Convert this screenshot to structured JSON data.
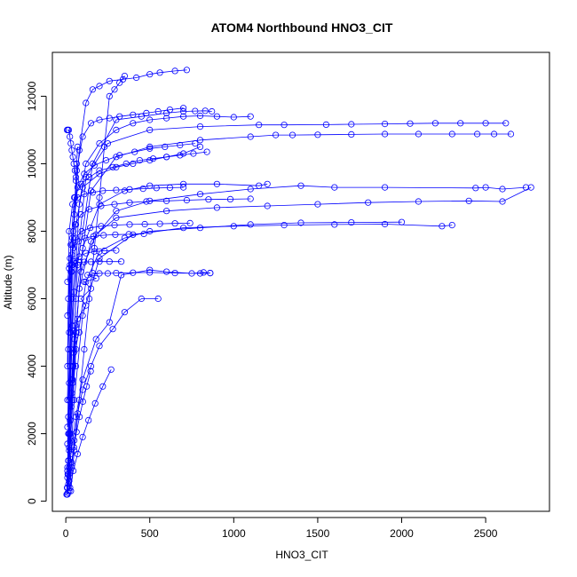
{
  "chart_data": {
    "type": "scatter",
    "title": "ATOM4 Northbound HNO3_CIT",
    "xlabel": "HNO3_CIT",
    "ylabel": "Altitude (m)",
    "xlim": [
      -80,
      2880
    ],
    "ylim": [
      -300,
      13300
    ],
    "xticks": [
      0,
      500,
      1000,
      1500,
      2000,
      2500
    ],
    "yticks": [
      0,
      2000,
      4000,
      6000,
      8000,
      10000,
      12000
    ],
    "grid": false,
    "legend": "none",
    "series_color": "#0000ff",
    "marker": "open-circle",
    "connected": true,
    "series": [
      {
        "x": [
          10,
          20,
          15,
          30,
          25,
          40,
          35,
          60,
          50,
          80,
          70,
          120,
          90,
          150,
          110,
          180,
          130,
          200,
          160,
          250,
          300,
          400,
          500,
          650,
          800,
          860
        ],
        "y": [
          200,
          600,
          1200,
          1800,
          2400,
          3000,
          3600,
          4000,
          4500,
          5000,
          5400,
          5800,
          6000,
          6300,
          6500,
          6600,
          6700,
          6750,
          6760,
          6750,
          6760,
          6770,
          6780,
          6760,
          6750,
          6760
        ]
      },
      {
        "x": [
          20,
          35,
          50,
          70,
          100,
          150,
          200,
          280,
          350,
          450,
          550
        ],
        "y": [
          300,
          1000,
          1800,
          2600,
          3300,
          4000,
          4600,
          5100,
          5600,
          6000,
          6000
        ]
      },
      {
        "x": [
          15,
          30,
          60,
          100,
          180,
          260,
          330,
          500,
          600,
          750,
          820,
          860
        ],
        "y": [
          500,
          1400,
          2500,
          3600,
          4800,
          5300,
          6700,
          6850,
          6800,
          6750,
          6780,
          6760
        ]
      },
      {
        "x": [
          10,
          30,
          60,
          120,
          200,
          350,
          500,
          800,
          1100,
          1400,
          1700,
          2000
        ],
        "y": [
          400,
          2000,
          4500,
          6500,
          7400,
          7800,
          8000,
          8100,
          8200,
          8250,
          8260,
          8270
        ]
      },
      {
        "x": [
          20,
          50,
          100,
          200,
          400,
          700,
          1000,
          1300,
          1600,
          1900,
          2240,
          2300
        ],
        "y": [
          600,
          3000,
          5500,
          7200,
          7900,
          8100,
          8150,
          8180,
          8200,
          8210,
          8150,
          8180
        ]
      },
      {
        "x": [
          15,
          40,
          90,
          180,
          300,
          600,
          900,
          1200,
          1500,
          1800,
          2100,
          2400,
          2600,
          2770
        ],
        "y": [
          800,
          4000,
          6800,
          7900,
          8400,
          8600,
          8700,
          8750,
          8800,
          8850,
          8880,
          8900,
          8880,
          9300
        ]
      },
      {
        "x": [
          10,
          40,
          80,
          150,
          300,
          500,
          800,
          1100,
          1400,
          1600,
          1900,
          2440,
          2500,
          2600,
          2740
        ],
        "y": [
          700,
          3500,
          6300,
          7700,
          8600,
          8900,
          9100,
          9250,
          9350,
          9300,
          9300,
          9280,
          9300,
          9250,
          9300
        ]
      },
      {
        "x": [
          20,
          60,
          100,
          200,
          350,
          500,
          700,
          900,
          1150,
          1200
        ],
        "y": [
          1000,
          5000,
          7500,
          8800,
          9200,
          9350,
          9400,
          9400,
          9350,
          9400
        ]
      },
      {
        "x": [
          10,
          30,
          60,
          100,
          200,
          300,
          400,
          500,
          600,
          700,
          800
        ],
        "y": [
          900,
          4500,
          8200,
          9300,
          9700,
          9900,
          10000,
          10100,
          10200,
          10300,
          10500
        ]
      },
      {
        "x": [
          15,
          40,
          80,
          120,
          200,
          300,
          400,
          500,
          600,
          700,
          800,
          900,
          1000,
          1100
        ],
        "y": [
          1200,
          5200,
          8800,
          10000,
          10600,
          11000,
          11200,
          11300,
          11350,
          11400,
          11420,
          11400,
          11380,
          11400
        ]
      },
      {
        "x": [
          20,
          60,
          150,
          300,
          500,
          800,
          1100,
          1250,
          1350,
          1500,
          1700,
          1900,
          2100,
          2300,
          2450,
          2550,
          2650
        ],
        "y": [
          1500,
          6000,
          9200,
          10200,
          10500,
          10700,
          10800,
          10850,
          10850,
          10860,
          10870,
          10880,
          10880,
          10880,
          10880,
          10880,
          10880
        ]
      },
      {
        "x": [
          10,
          50,
          120,
          250,
          500,
          800,
          1150,
          1300,
          1550,
          1700,
          1900,
          2050,
          2200,
          2350,
          2500,
          2620
        ],
        "y": [
          1700,
          6200,
          9600,
          10600,
          11000,
          11100,
          11150,
          11150,
          11160,
          11170,
          11180,
          11190,
          11200,
          11200,
          11200,
          11200
        ]
      },
      {
        "x": [
          20,
          70,
          160,
          300,
          450,
          600,
          700,
          770,
          830,
          870
        ],
        "y": [
          2000,
          7000,
          10000,
          11300,
          11400,
          11500,
          11550,
          11560,
          11570,
          11550
        ]
      },
      {
        "x": [
          10,
          40,
          80,
          120,
          160,
          200,
          260,
          340,
          420,
          500,
          560,
          650,
          720
        ],
        "y": [
          2200,
          7600,
          10400,
          11800,
          12200,
          12300,
          12450,
          12500,
          12550,
          12650,
          12700,
          12750,
          12780
        ]
      },
      {
        "x": [
          15,
          35,
          65,
          100,
          150,
          200,
          260,
          320,
          400,
          480,
          550,
          620,
          700
        ],
        "y": [
          2500,
          6800,
          9800,
          10800,
          11200,
          11300,
          11350,
          11400,
          11450,
          11500,
          11550,
          11600,
          11650
        ]
      },
      {
        "x": [
          10,
          25,
          50,
          90,
          140,
          200,
          280,
          360,
          440,
          520,
          600,
          680,
          760,
          840
        ],
        "y": [
          3000,
          7200,
          9000,
          9400,
          9600,
          9800,
          9900,
          10000,
          10100,
          10150,
          10200,
          10250,
          10300,
          10350
        ]
      },
      {
        "x": [
          20,
          40,
          70,
          110,
          170,
          240,
          320,
          410,
          500,
          590,
          680,
          770
        ],
        "y": [
          3500,
          7800,
          9300,
          9700,
          9950,
          10100,
          10250,
          10350,
          10450,
          10500,
          10550,
          10600
        ]
      },
      {
        "x": [
          10,
          20,
          40,
          70,
          110,
          160,
          220,
          300,
          380,
          460,
          540,
          620,
          700
        ],
        "y": [
          4000,
          8000,
          8800,
          9000,
          9100,
          9150,
          9200,
          9220,
          9240,
          9260,
          9280,
          9290,
          9300
        ]
      },
      {
        "x": [
          15,
          30,
          55,
          90,
          140,
          210,
          290,
          380,
          480,
          600,
          720,
          850,
          980,
          1100
        ],
        "y": [
          4500,
          7600,
          8200,
          8500,
          8650,
          8750,
          8800,
          8850,
          8880,
          8900,
          8920,
          8940,
          8950,
          8960
        ]
      },
      {
        "x": [
          20,
          35,
          60,
          95,
          145,
          210,
          290,
          380,
          470,
          560,
          650,
          740
        ],
        "y": [
          5000,
          7300,
          7800,
          8000,
          8100,
          8150,
          8180,
          8200,
          8210,
          8220,
          8230,
          8240
        ]
      },
      {
        "x": [
          10,
          25,
          45,
          75,
          115,
          165,
          225,
          295,
          375,
          465
        ],
        "y": [
          5500,
          7000,
          7500,
          7700,
          7800,
          7850,
          7880,
          7900,
          7910,
          7920
        ]
      },
      {
        "x": [
          15,
          30,
          50,
          80,
          120,
          170,
          230,
          300
        ],
        "y": [
          6000,
          6800,
          7100,
          7250,
          7350,
          7400,
          7420,
          7430
        ]
      },
      {
        "x": [
          10,
          20,
          35,
          55,
          80,
          110,
          150,
          200,
          260,
          330
        ],
        "y": [
          6500,
          6900,
          7000,
          7050,
          7080,
          7090,
          7095,
          7100,
          7100,
          7100
        ]
      },
      {
        "x": [
          5,
          10,
          15,
          20,
          25,
          30,
          35,
          40,
          45,
          50,
          55,
          60,
          65,
          70
        ],
        "y": [
          200,
          1000,
          2000,
          3000,
          4000,
          5000,
          6000,
          7000,
          8000,
          8500,
          9000,
          9500,
          10000,
          10500
        ]
      },
      {
        "x": [
          8,
          12,
          18,
          24,
          30,
          36,
          42,
          48,
          54,
          60
        ],
        "y": [
          11000,
          11000,
          11000,
          10800,
          10600,
          10400,
          10200,
          10000,
          9800,
          9600
        ]
      },
      {
        "x": [
          30,
          50,
          80,
          110,
          140,
          170,
          200,
          230,
          260,
          290,
          320,
          350
        ],
        "y": [
          300,
          1500,
          3000,
          4500,
          6000,
          7500,
          9000,
          10500,
          12000,
          12200,
          12400,
          12600
        ]
      },
      {
        "x": [
          5,
          8,
          12,
          16,
          20,
          24,
          28,
          32,
          36,
          40,
          44,
          48,
          52,
          56
        ],
        "y": [
          200,
          400,
          800,
          1200,
          1600,
          2000,
          2400,
          2800,
          3200,
          3600,
          4000,
          4400,
          4800,
          5200
        ]
      },
      {
        "x": [
          25,
          45,
          70,
          100,
          135,
          175,
          220,
          270
        ],
        "y": [
          400,
          900,
          1400,
          1900,
          2400,
          2900,
          3400,
          3900
        ]
      },
      {
        "x": [
          12,
          22,
          34,
          48,
          64,
          82,
          102,
          124,
          148
        ],
        "y": [
          250,
          700,
          1150,
          1600,
          2050,
          2500,
          2950,
          3400,
          3850
        ]
      }
    ]
  }
}
